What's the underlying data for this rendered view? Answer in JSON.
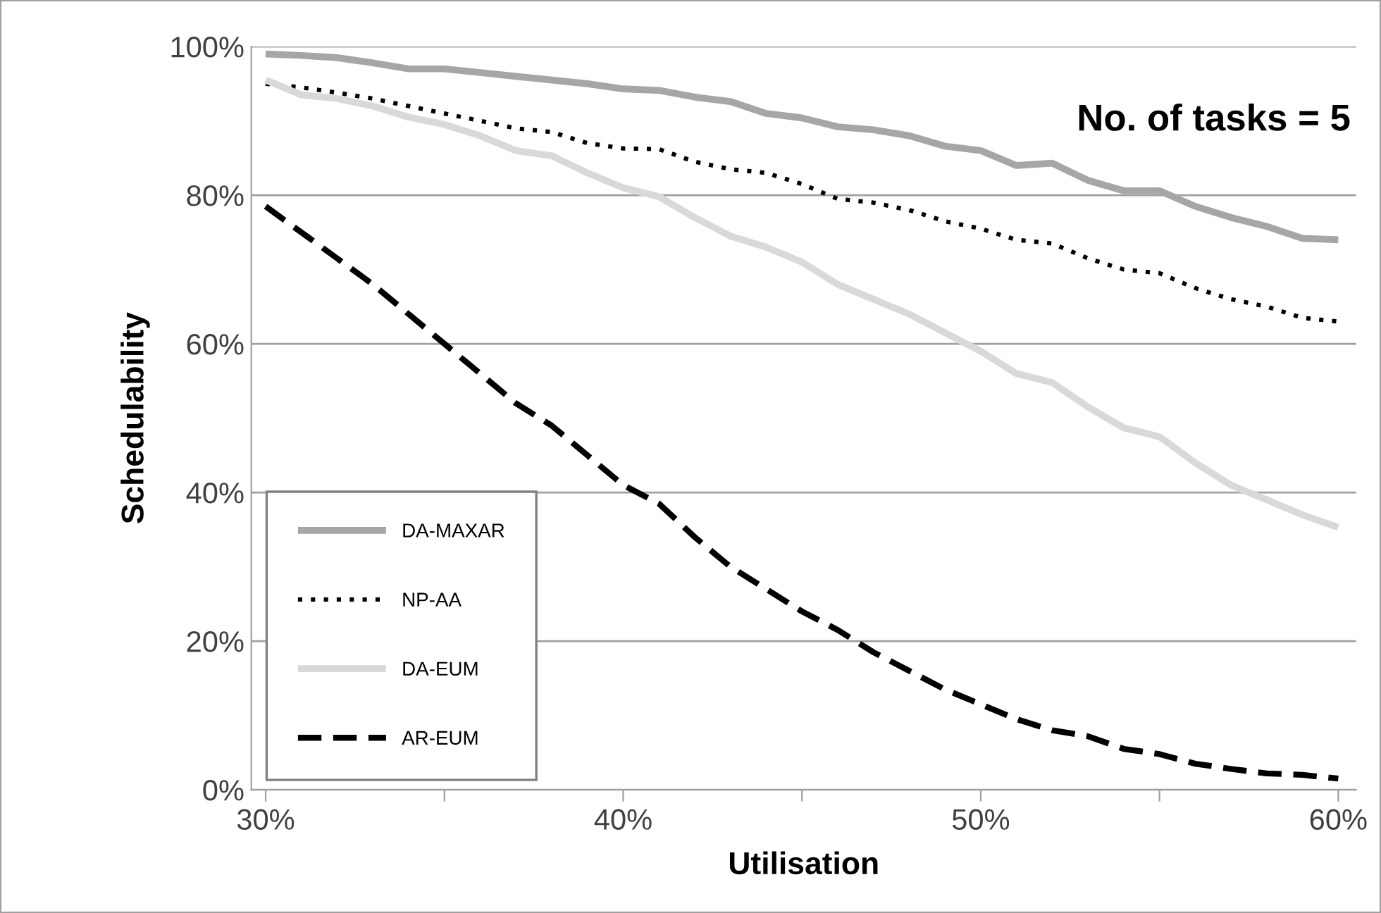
{
  "chart_data": {
    "type": "line",
    "xlabel": "Utilisation",
    "ylabel": "Schedulability",
    "annotations": [
      "No. of tasks = 5"
    ],
    "x": [
      30,
      31,
      32,
      33,
      34,
      35,
      36,
      37,
      38,
      39,
      40,
      41,
      42,
      43,
      44,
      45,
      46,
      47,
      48,
      49,
      50,
      51,
      52,
      53,
      54,
      55,
      56,
      57,
      58,
      59,
      60
    ],
    "xlim": [
      29.6,
      60.5
    ],
    "ylim": [
      0,
      100
    ],
    "xticks": [
      {
        "value": 30,
        "label": "30%"
      },
      {
        "value": 35,
        "label": null
      },
      {
        "value": 40,
        "label": "40%"
      },
      {
        "value": 45,
        "label": null
      },
      {
        "value": 50,
        "label": "50%"
      },
      {
        "value": 55,
        "label": null
      },
      {
        "value": 60,
        "label": "60%"
      }
    ],
    "yticks": [
      {
        "value": 0,
        "label": "0%"
      },
      {
        "value": 20,
        "label": "20%"
      },
      {
        "value": 40,
        "label": "40%"
      },
      {
        "value": 60,
        "label": "60%"
      },
      {
        "value": 80,
        "label": "80%"
      },
      {
        "value": 100,
        "label": "100%"
      }
    ],
    "grid": "y",
    "legend": "bottom left",
    "marker": "none",
    "series": [
      {
        "name": "DA-MAXAR",
        "color": "#a6a6a6",
        "line_style": "solid",
        "values": [
          99,
          98.8,
          98.5,
          97.8,
          97,
          97,
          96.5,
          96,
          95.5,
          95,
          94.3,
          94.1,
          93.2,
          92.6,
          91,
          90.4,
          89.2,
          88.8,
          88,
          86.6,
          86,
          84,
          84.3,
          82,
          80.6,
          80.6,
          78.5,
          77,
          75.8,
          74.2,
          74
        ]
      },
      {
        "name": "NP-AA",
        "color": "#000000",
        "line_style": "dotted",
        "values": [
          95,
          94.5,
          93.8,
          93,
          92,
          91,
          90,
          89,
          88.5,
          87,
          86.3,
          86.2,
          84.5,
          83.5,
          83,
          81.5,
          79.5,
          79,
          78,
          76.5,
          75.5,
          74,
          73.5,
          71.5,
          70,
          69.5,
          67.5,
          66,
          65,
          63.5,
          63
        ]
      },
      {
        "name": "DA-EUM",
        "color": "#d9d9d9",
        "line_style": "solid",
        "values": [
          95.5,
          93.5,
          93,
          92,
          90.5,
          89.5,
          88,
          86,
          85.3,
          83,
          81,
          79.8,
          77,
          74.5,
          73,
          71,
          68,
          66,
          64,
          61.5,
          59,
          56,
          54.8,
          51.5,
          48.7,
          47.5,
          44,
          41,
          39,
          37,
          35.3
        ]
      },
      {
        "name": "AR-EUM",
        "color": "#000000",
        "line_style": "dashed",
        "values": [
          78.5,
          75,
          71.5,
          68,
          64,
          60,
          56,
          52,
          49,
          45,
          41,
          38.5,
          34,
          30,
          27,
          24,
          21.5,
          18.5,
          16,
          13.5,
          11.5,
          9.5,
          8,
          7.2,
          5.5,
          4.8,
          3.5,
          2.8,
          2.2,
          2,
          1.5
        ]
      }
    ]
  }
}
